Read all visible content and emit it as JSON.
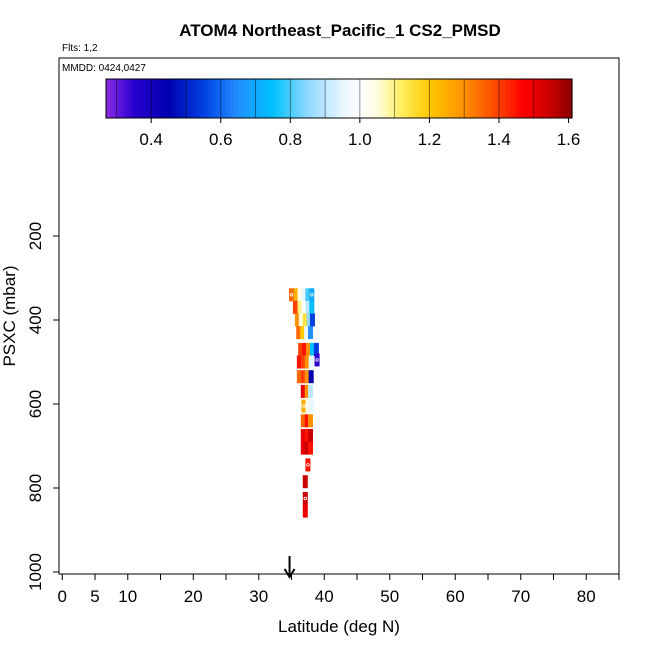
{
  "chart_data": {
    "type": "heatmap",
    "title": "ATOM4 Northeast_Pacific_1 CS2_PMSD",
    "flights_label": "Flts: 1,2",
    "dates_label": "MMDD: 0424,0427",
    "xlabel": "Latitude (deg N)",
    "ylabel": "PSXC (mbar)",
    "xlim": [
      -0.5,
      85
    ],
    "ylim": [
      1000,
      0
    ],
    "x_ticks": [
      0,
      5,
      10,
      20,
      30,
      40,
      50,
      60,
      70,
      80
    ],
    "x_minor_ticks": [
      0,
      5,
      10,
      15,
      20,
      25,
      30,
      35,
      40,
      45,
      50,
      55,
      60,
      65,
      70,
      75,
      80,
      85
    ],
    "y_ticks": [
      200,
      400,
      600,
      800,
      1000
    ],
    "arrow_latitude": 34.7,
    "colorbar": {
      "range": [
        0.27,
        1.61
      ],
      "ticks": [
        0.4,
        0.6,
        0.8,
        1.0,
        1.2,
        1.4,
        1.6
      ],
      "tick_labels": [
        "0.4",
        "0.6",
        "0.8",
        "1.0",
        "1.2",
        "1.4",
        "1.6"
      ]
    },
    "cells": [
      {
        "lat": 35.0,
        "p": 340,
        "v": 1.35,
        "marker": true
      },
      {
        "lat": 35.7,
        "p": 340,
        "v": 1.25
      },
      {
        "lat": 36.3,
        "p": 340,
        "v": 1.05
      },
      {
        "lat": 36.9,
        "p": 340,
        "v": 0.95
      },
      {
        "lat": 37.5,
        "p": 340,
        "v": 0.8
      },
      {
        "lat": 38.1,
        "p": 340,
        "v": 0.7,
        "marker": true
      },
      {
        "lat": 35.6,
        "p": 370,
        "v": 1.4
      },
      {
        "lat": 36.3,
        "p": 370,
        "v": 1.1
      },
      {
        "lat": 36.9,
        "p": 370,
        "v": 1.0
      },
      {
        "lat": 37.5,
        "p": 370,
        "v": 0.9
      },
      {
        "lat": 38.1,
        "p": 370,
        "v": 0.75
      },
      {
        "lat": 35.9,
        "p": 400,
        "v": 1.3
      },
      {
        "lat": 36.5,
        "p": 400,
        "v": 1.05
      },
      {
        "lat": 37.1,
        "p": 400,
        "v": 1.15
      },
      {
        "lat": 37.7,
        "p": 400,
        "v": 0.85
      },
      {
        "lat": 38.2,
        "p": 400,
        "v": 0.55
      },
      {
        "lat": 36.1,
        "p": 430,
        "v": 1.35
      },
      {
        "lat": 36.7,
        "p": 430,
        "v": 1.2
      },
      {
        "lat": 37.3,
        "p": 430,
        "v": 0.95
      },
      {
        "lat": 37.9,
        "p": 430,
        "v": 0.65
      },
      {
        "lat": 36.4,
        "p": 470,
        "v": 1.4
      },
      {
        "lat": 37.0,
        "p": 470,
        "v": 1.45
      },
      {
        "lat": 37.6,
        "p": 470,
        "v": 1.3
      },
      {
        "lat": 38.2,
        "p": 470,
        "v": 0.75
      },
      {
        "lat": 38.8,
        "p": 470,
        "v": 0.55
      },
      {
        "lat": 36.2,
        "p": 500,
        "v": 1.45
      },
      {
        "lat": 36.8,
        "p": 500,
        "v": 1.4
      },
      {
        "lat": 37.4,
        "p": 500,
        "v": 1.3
      },
      {
        "lat": 38.0,
        "p": 500,
        "v": 0.95
      },
      {
        "lat": 38.9,
        "p": 495,
        "v": 0.35,
        "marker": true
      },
      {
        "lat": 36.2,
        "p": 535,
        "v": 1.35
      },
      {
        "lat": 36.8,
        "p": 535,
        "v": 1.4
      },
      {
        "lat": 37.4,
        "p": 535,
        "v": 1.3
      },
      {
        "lat": 38.0,
        "p": 535,
        "v": 0.45
      },
      {
        "lat": 36.8,
        "p": 570,
        "v": 1.5
      },
      {
        "lat": 37.4,
        "p": 570,
        "v": 1.3
      },
      {
        "lat": 37.9,
        "p": 570,
        "v": 0.9
      },
      {
        "lat": 36.9,
        "p": 605,
        "v": 1.25,
        "marker": true
      },
      {
        "lat": 37.5,
        "p": 605,
        "v": 1.05
      },
      {
        "lat": 38.0,
        "p": 605,
        "v": 0.95
      },
      {
        "lat": 36.8,
        "p": 640,
        "v": 1.35
      },
      {
        "lat": 37.4,
        "p": 640,
        "v": 1.45
      },
      {
        "lat": 37.9,
        "p": 640,
        "v": 1.3
      },
      {
        "lat": 36.8,
        "p": 675,
        "v": 1.5
      },
      {
        "lat": 37.4,
        "p": 675,
        "v": 1.45
      },
      {
        "lat": 37.9,
        "p": 675,
        "v": 1.55
      },
      {
        "lat": 36.8,
        "p": 705,
        "v": 1.5
      },
      {
        "lat": 37.4,
        "p": 705,
        "v": 1.55
      },
      {
        "lat": 37.9,
        "p": 705,
        "v": 1.45
      },
      {
        "lat": 37.5,
        "p": 745,
        "v": 1.45,
        "marker": true
      },
      {
        "lat": 37.1,
        "p": 785,
        "v": 1.55
      },
      {
        "lat": 37.1,
        "p": 825,
        "v": 1.55,
        "marker": true
      },
      {
        "lat": 37.1,
        "p": 855,
        "v": 1.5
      }
    ]
  }
}
